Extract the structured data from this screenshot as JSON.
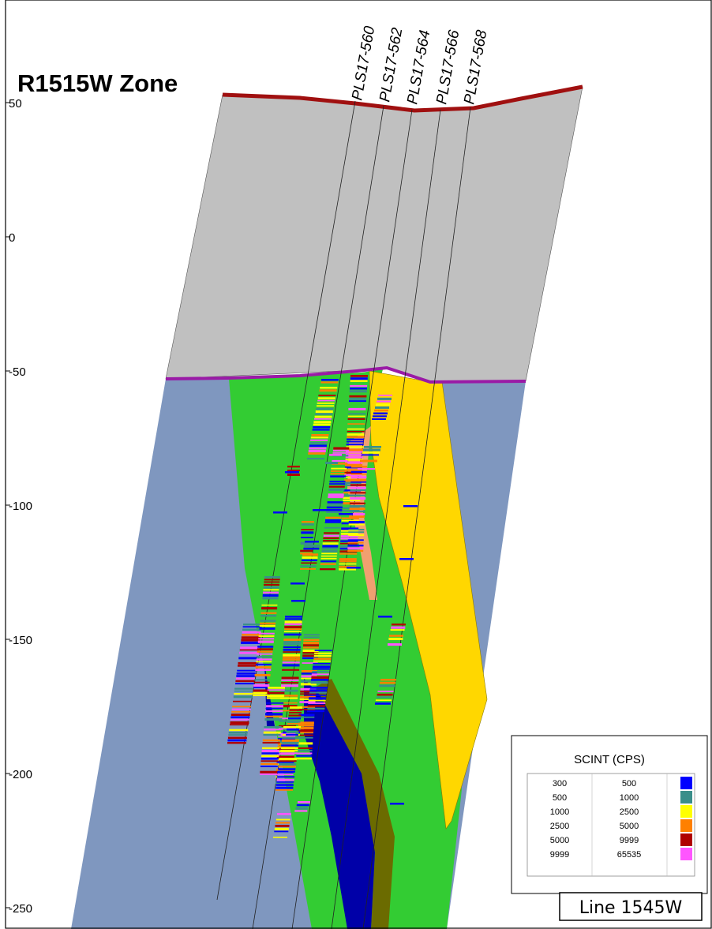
{
  "title": "R1515W Zone",
  "section_label": "Line 1545W",
  "y_axis_ticks": [
    "50",
    "0",
    "-50",
    "-100",
    "-150",
    "-200",
    "-250"
  ],
  "drillholes": [
    "PLS17-560",
    "PLS17-562",
    "PLS17-564",
    "PLS17-566",
    "PLS17-568"
  ],
  "legend": {
    "title": "SCINT (CPS)",
    "rows": [
      {
        "from": "300",
        "to": "500",
        "color": "#0000ff"
      },
      {
        "from": "500",
        "to": "1000",
        "color": "#3a8e8a"
      },
      {
        "from": "1000",
        "to": "2500",
        "color": "#ffff00"
      },
      {
        "from": "2500",
        "to": "5000",
        "color": "#ff8000"
      },
      {
        "from": "5000",
        "to": "9999",
        "color": "#b00000"
      },
      {
        "from": "9999",
        "to": "65535",
        "color": "#ff55ff"
      }
    ]
  },
  "units": {
    "overburden": "#c0c0c0",
    "basement": "#7f97bf",
    "green_zone": "#33cc33",
    "yellow_zone": "#ffd700",
    "dark_blue": "#0000a8",
    "olive": "#6b6b00",
    "topography_line": "#a01010",
    "unconformity_line": "#9a1aa6",
    "salmon": "#f0a070"
  }
}
